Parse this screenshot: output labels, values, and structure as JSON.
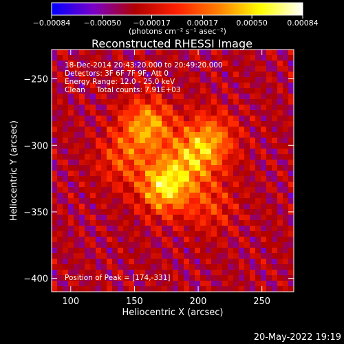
{
  "chart_data": {
    "type": "heatmap",
    "title": "Reconstructed RHESSI Image",
    "xlabel": "Heliocentric X (arcsec)",
    "ylabel": "Heliocentric Y (arcsec)",
    "xlim": [
      85,
      275
    ],
    "ylim": [
      -410,
      -228
    ],
    "x_ticks": [
      100,
      150,
      200,
      250
    ],
    "y_ticks": [
      -250,
      -300,
      -350,
      -400
    ],
    "colorbar": {
      "min": -0.00084,
      "max": 0.00084,
      "tick_values": [
        -0.00084,
        -0.0005,
        -0.00017,
        0.00017,
        0.0005,
        0.00084
      ],
      "tick_labels": [
        "−0.00084",
        "−0.00050",
        "−0.00017",
        "0.00017",
        "0.00050",
        "0.00084"
      ],
      "units_label": "(photons cm⁻² s⁻¹ asec⁻²)",
      "colors": [
        "#0000ff",
        "#7a00c8",
        "#b00000",
        "#ff2000",
        "#ff8000",
        "#ffff00",
        "#ffffff"
      ]
    },
    "annotations": [
      "18-Dec-2014 20:43:20.000 to 20:49:20.000",
      "Detectors: 3F 6F 7F 9F, Att 0",
      "Energy Range: 12.0 - 25.0 keV",
      "Clean     Total counts: 7.91E+03"
    ],
    "peak_label": "Position of Peak = [174,-331]",
    "peak": {
      "x": 174,
      "y": -331,
      "value": 0.00084
    },
    "sources": [
      {
        "x": 174,
        "y": -331,
        "amplitude": 0.00084
      },
      {
        "x": 160,
        "y": -285,
        "amplitude": 0.00066
      },
      {
        "x": 210,
        "y": -295,
        "amplitude": 0.00052
      },
      {
        "x": 195,
        "y": -310,
        "amplitude": 0.0005
      },
      {
        "x": 140,
        "y": -310,
        "amplitude": 0.00035
      },
      {
        "x": 210,
        "y": -345,
        "amplitude": 0.0003
      }
    ]
  },
  "footer": {
    "timestamp": "20-May-2022 19:19"
  }
}
